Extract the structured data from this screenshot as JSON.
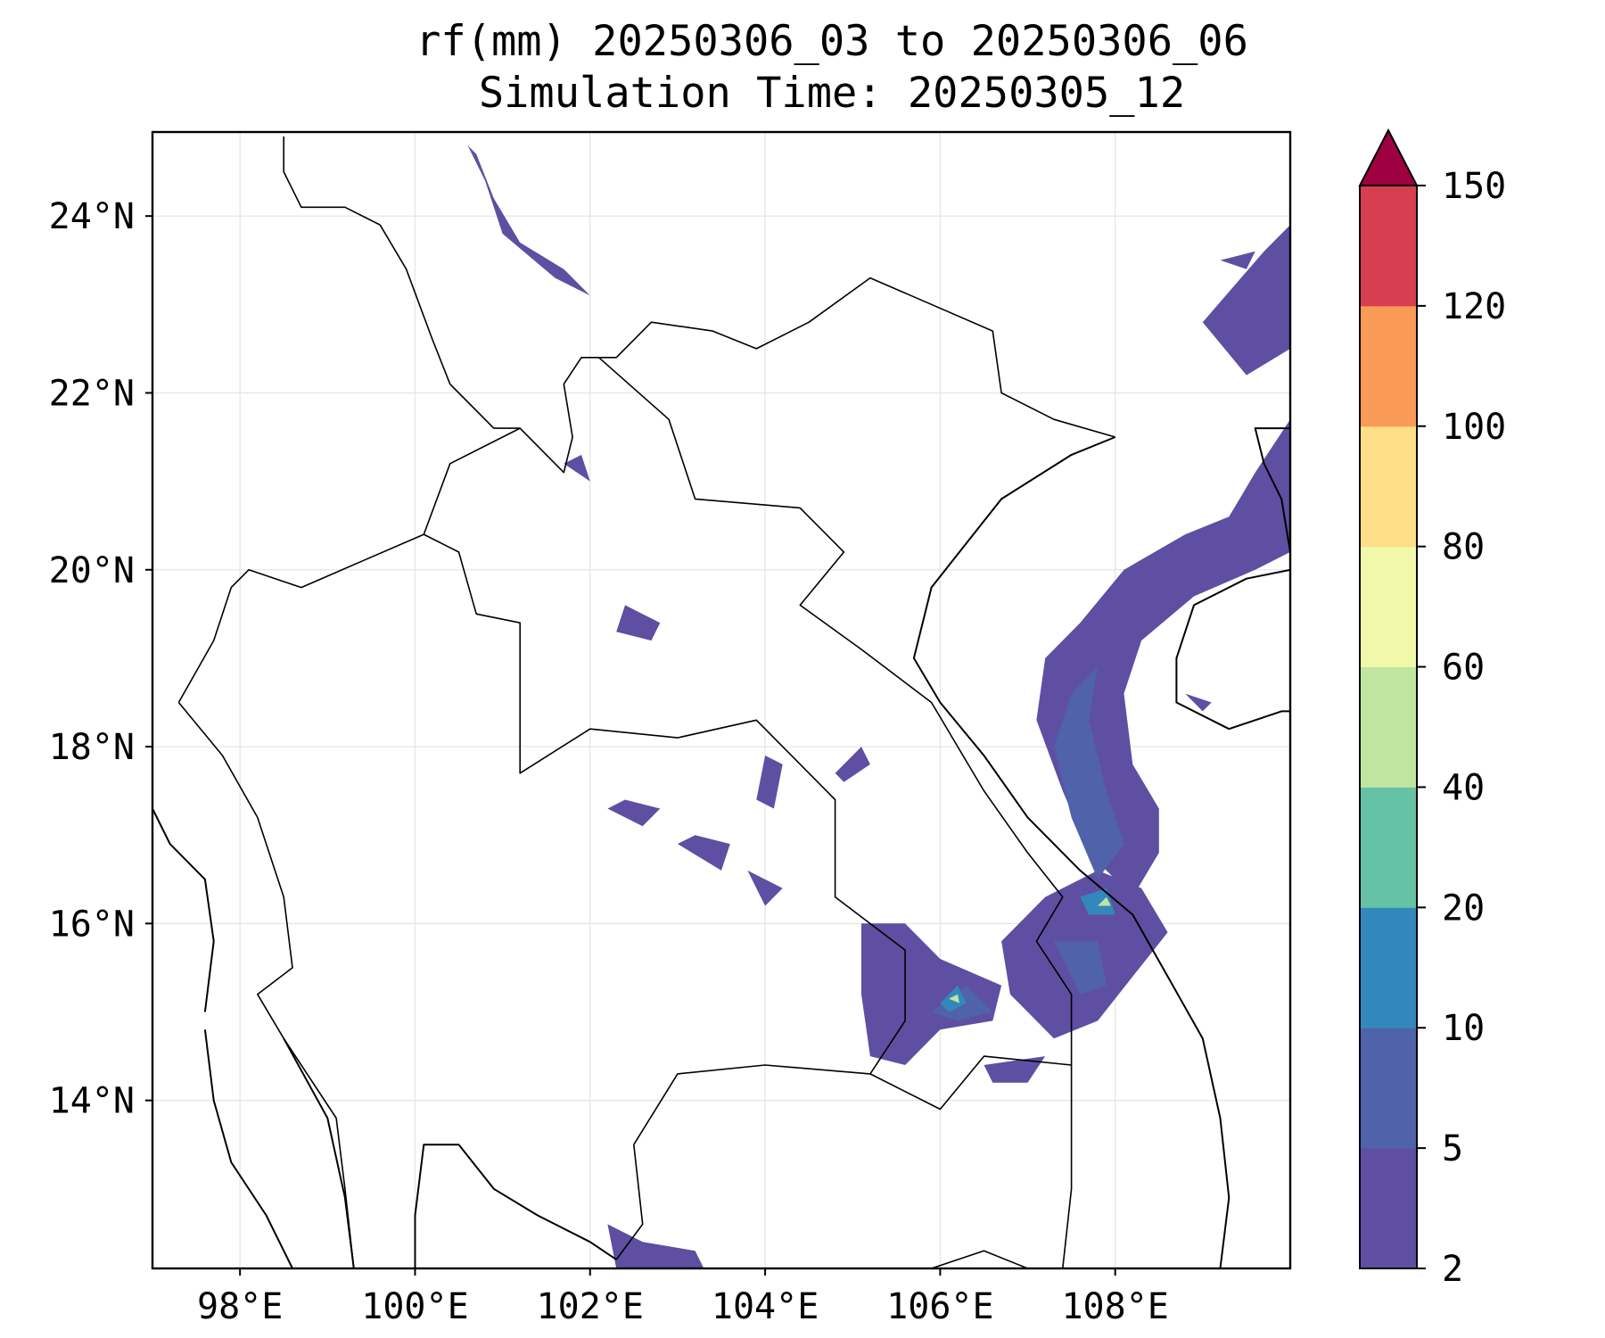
{
  "title_line1": "rf(mm) 20250306_03 to 20250306_06",
  "title_line2": "Simulation Time: 20250305_12",
  "map": {
    "lon_range": [
      97,
      110
    ],
    "lat_range": [
      12.1,
      24.95
    ],
    "x_ticks": [
      {
        "value": 98,
        "label": "98°E"
      },
      {
        "value": 100,
        "label": "100°E"
      },
      {
        "value": 102,
        "label": "102°E"
      },
      {
        "value": 104,
        "label": "104°E"
      },
      {
        "value": 106,
        "label": "106°E"
      },
      {
        "value": 108,
        "label": "108°E"
      }
    ],
    "y_ticks": [
      {
        "value": 14,
        "label": "14°N"
      },
      {
        "value": 16,
        "label": "16°N"
      },
      {
        "value": 18,
        "label": "18°N"
      },
      {
        "value": 20,
        "label": "20°N"
      },
      {
        "value": 22,
        "label": "22°N"
      },
      {
        "value": 24,
        "label": "24°N"
      }
    ],
    "grid": true
  },
  "colorbar": {
    "levels": [
      2,
      5,
      10,
      20,
      40,
      60,
      80,
      100,
      120,
      150
    ],
    "labels": [
      "2",
      "5",
      "10",
      "20",
      "40",
      "60",
      "80",
      "100",
      "120",
      "150"
    ],
    "colors": [
      "#5e4fa2",
      "#4f62aa",
      "#3288bd",
      "#66c2a5",
      "#bfe5a0",
      "#f1f8aa",
      "#fdde89",
      "#fa9a57",
      "#d63f4f"
    ],
    "extend_color": "#9e0142",
    "extend": "max"
  },
  "rain_patches": [
    {
      "name": "rain-band-gulf-of-tonkin",
      "level": 0,
      "points": [
        [
          108.2,
          16.3
        ],
        [
          107.7,
          16.8
        ],
        [
          107.4,
          17.5
        ],
        [
          107.1,
          18.3
        ],
        [
          107.2,
          19.0
        ],
        [
          107.6,
          19.4
        ],
        [
          108.1,
          20.0
        ],
        [
          108.8,
          20.4
        ],
        [
          109.3,
          20.6
        ],
        [
          109.6,
          21.1
        ],
        [
          110.0,
          21.7
        ],
        [
          110.0,
          20.2
        ],
        [
          109.6,
          20.0
        ],
        [
          108.9,
          19.7
        ],
        [
          108.3,
          19.2
        ],
        [
          108.1,
          18.6
        ],
        [
          108.2,
          17.8
        ],
        [
          108.5,
          17.3
        ],
        [
          108.5,
          16.8
        ]
      ]
    },
    {
      "name": "rain-band-central-vietnam",
      "level": 0,
      "points": [
        [
          107.2,
          16.3
        ],
        [
          106.7,
          15.8
        ],
        [
          106.8,
          15.2
        ],
        [
          107.3,
          14.7
        ],
        [
          107.8,
          14.9
        ],
        [
          108.2,
          15.4
        ],
        [
          108.6,
          15.9
        ],
        [
          108.3,
          16.4
        ],
        [
          107.8,
          16.6
        ]
      ]
    },
    {
      "name": "rain-band-guangxi",
      "level": 0,
      "points": [
        [
          109.0,
          22.8
        ],
        [
          109.7,
          23.6
        ],
        [
          110.0,
          23.9
        ],
        [
          110.0,
          22.5
        ],
        [
          109.5,
          22.2
        ]
      ]
    },
    {
      "name": "rain-band-northwest-yunnan",
      "level": 0,
      "points": [
        [
          100.6,
          24.8
        ],
        [
          100.8,
          24.4
        ],
        [
          101.0,
          23.8
        ],
        [
          101.6,
          23.3
        ],
        [
          102.0,
          23.1
        ],
        [
          101.7,
          23.4
        ],
        [
          101.2,
          23.7
        ],
        [
          100.9,
          24.2
        ],
        [
          100.7,
          24.7
        ]
      ]
    },
    {
      "name": "rain-cluster-southern-laos",
      "level": 0,
      "points": [
        [
          105.1,
          16.0
        ],
        [
          105.6,
          16.0
        ],
        [
          106.0,
          15.6
        ],
        [
          106.7,
          15.3
        ],
        [
          106.6,
          14.9
        ],
        [
          106.0,
          14.8
        ],
        [
          105.6,
          14.4
        ],
        [
          105.2,
          14.5
        ],
        [
          105.1,
          15.2
        ]
      ]
    },
    {
      "name": "rain-patch-cambodia-east",
      "level": 0,
      "points": [
        [
          106.5,
          14.4
        ],
        [
          107.2,
          14.5
        ],
        [
          107.0,
          14.2
        ],
        [
          106.6,
          14.2
        ]
      ]
    },
    {
      "name": "rain-patch-gulf-of-thailand",
      "level": 0,
      "points": [
        [
          102.2,
          12.6
        ],
        [
          102.6,
          12.4
        ],
        [
          103.2,
          12.3
        ],
        [
          103.3,
          12.1
        ],
        [
          102.3,
          12.1
        ]
      ]
    },
    {
      "name": "rain-patch-laos-1",
      "level": 0,
      "points": [
        [
          102.2,
          17.3
        ],
        [
          102.6,
          17.1
        ],
        [
          102.8,
          17.3
        ],
        [
          102.4,
          17.4
        ]
      ]
    },
    {
      "name": "rain-patch-laos-2",
      "level": 0,
      "points": [
        [
          103.0,
          16.9
        ],
        [
          103.5,
          16.6
        ],
        [
          103.6,
          16.9
        ],
        [
          103.2,
          17.0
        ]
      ]
    },
    {
      "name": "rain-patch-laos-3",
      "level": 0,
      "points": [
        [
          103.9,
          17.4
        ],
        [
          104.0,
          17.9
        ],
        [
          104.2,
          17.8
        ],
        [
          104.1,
          17.3
        ]
      ]
    },
    {
      "name": "rain-patch-laos-4",
      "level": 0,
      "points": [
        [
          104.8,
          17.7
        ],
        [
          105.1,
          18.0
        ],
        [
          105.2,
          17.8
        ],
        [
          104.9,
          17.6
        ]
      ]
    },
    {
      "name": "rain-patch-laos-5",
      "level": 0,
      "points": [
        [
          103.8,
          16.6
        ],
        [
          104.0,
          16.2
        ],
        [
          104.2,
          16.4
        ]
      ]
    },
    {
      "name": "rain-patch-laos-6",
      "level": 0,
      "points": [
        [
          102.4,
          19.6
        ],
        [
          102.8,
          19.4
        ],
        [
          102.7,
          19.2
        ],
        [
          102.3,
          19.3
        ]
      ]
    },
    {
      "name": "rain-patch-hainan",
      "level": 0,
      "points": [
        [
          108.8,
          18.6
        ],
        [
          109.0,
          18.4
        ],
        [
          109.1,
          18.5
        ]
      ]
    },
    {
      "name": "rain-patch-guangdong",
      "level": 0,
      "points": [
        [
          109.2,
          23.5
        ],
        [
          109.6,
          23.6
        ],
        [
          109.5,
          23.4
        ]
      ]
    },
    {
      "name": "rain-patch-myanmar-thailand",
      "level": 0,
      "points": [
        [
          101.7,
          21.2
        ],
        [
          102.0,
          21.0
        ],
        [
          101.9,
          21.3
        ]
      ]
    },
    {
      "name": "rain-core-gulf-of-tonkin",
      "level": 1,
      "points": [
        [
          107.8,
          16.5
        ],
        [
          107.5,
          17.2
        ],
        [
          107.3,
          18.0
        ],
        [
          107.5,
          18.6
        ],
        [
          107.8,
          18.9
        ],
        [
          107.7,
          18.3
        ],
        [
          107.9,
          17.5
        ],
        [
          108.1,
          16.9
        ]
      ]
    },
    {
      "name": "rain-core-central-vietnam",
      "level": 1,
      "points": [
        [
          107.3,
          15.8
        ],
        [
          107.6,
          15.2
        ],
        [
          107.9,
          15.3
        ],
        [
          107.8,
          15.8
        ]
      ]
    },
    {
      "name": "rain-core-southern-laos",
      "level": 1,
      "points": [
        [
          105.9,
          15.0
        ],
        [
          106.3,
          15.3
        ],
        [
          106.6,
          15.0
        ],
        [
          106.2,
          14.9
        ]
      ]
    },
    {
      "name": "rain-cell-hue",
      "level": 2,
      "points": [
        [
          107.6,
          16.3
        ],
        [
          107.9,
          16.4
        ],
        [
          108.0,
          16.1
        ],
        [
          107.7,
          16.1
        ]
      ]
    },
    {
      "name": "rain-cell-sekong",
      "level": 2,
      "points": [
        [
          106.0,
          15.1
        ],
        [
          106.2,
          15.3
        ],
        [
          106.3,
          15.1
        ],
        [
          106.1,
          15.0
        ]
      ]
    },
    {
      "name": "rain-cell-hue-inner",
      "level": 4,
      "points": [
        [
          107.8,
          16.2
        ],
        [
          107.9,
          16.3
        ],
        [
          107.95,
          16.2
        ]
      ]
    },
    {
      "name": "rain-cell-sekong-inner",
      "level": 4,
      "points": [
        [
          106.1,
          15.15
        ],
        [
          106.2,
          15.2
        ],
        [
          106.22,
          15.1
        ]
      ]
    }
  ],
  "borders": [
    {
      "name": "china-border",
      "points": [
        [
          98.5,
          24.9
        ],
        [
          98.5,
          24.5
        ],
        [
          98.7,
          24.1
        ],
        [
          99.2,
          24.1
        ],
        [
          99.6,
          23.9
        ],
        [
          99.9,
          23.4
        ],
        [
          100.2,
          22.6
        ],
        [
          100.4,
          22.1
        ],
        [
          100.9,
          21.6
        ],
        [
          101.2,
          21.6
        ],
        [
          101.7,
          21.1
        ],
        [
          101.8,
          21.5
        ],
        [
          101.7,
          22.1
        ],
        [
          101.9,
          22.4
        ],
        [
          102.3,
          22.4
        ],
        [
          102.7,
          22.8
        ],
        [
          103.4,
          22.7
        ],
        [
          103.9,
          22.5
        ],
        [
          104.5,
          22.8
        ],
        [
          105.2,
          23.3
        ],
        [
          105.9,
          23.0
        ],
        [
          106.6,
          22.7
        ],
        [
          106.7,
          22.0
        ],
        [
          107.3,
          21.7
        ],
        [
          108.0,
          21.5
        ]
      ]
    },
    {
      "name": "laos-vietnam-border",
      "points": [
        [
          102.1,
          22.4
        ],
        [
          102.9,
          21.7
        ],
        [
          103.2,
          20.8
        ],
        [
          104.4,
          20.7
        ],
        [
          104.9,
          20.2
        ],
        [
          104.4,
          19.6
        ],
        [
          105.1,
          19.1
        ],
        [
          105.9,
          18.5
        ],
        [
          106.5,
          17.5
        ],
        [
          107.0,
          16.8
        ],
        [
          107.4,
          16.3
        ],
        [
          107.1,
          15.8
        ],
        [
          107.5,
          15.2
        ],
        [
          107.5,
          14.4
        ]
      ]
    },
    {
      "name": "laos-thailand-border",
      "points": [
        [
          100.1,
          20.4
        ],
        [
          100.5,
          20.2
        ],
        [
          100.7,
          19.5
        ],
        [
          101.2,
          19.4
        ],
        [
          101.2,
          17.7
        ],
        [
          102.0,
          18.2
        ],
        [
          103.0,
          18.1
        ],
        [
          103.9,
          18.3
        ],
        [
          104.8,
          17.4
        ],
        [
          104.8,
          16.3
        ],
        [
          105.6,
          15.7
        ],
        [
          105.6,
          14.9
        ],
        [
          105.2,
          14.3
        ]
      ]
    },
    {
      "name": "myanmar-laos-border",
      "points": [
        [
          100.1,
          20.4
        ],
        [
          100.4,
          21.2
        ],
        [
          101.2,
          21.6
        ]
      ]
    },
    {
      "name": "myanmar-thailand-border",
      "points": [
        [
          97.3,
          18.5
        ],
        [
          97.8,
          17.9
        ],
        [
          98.2,
          17.2
        ],
        [
          98.5,
          16.3
        ],
        [
          98.6,
          15.5
        ],
        [
          98.2,
          15.2
        ],
        [
          98.5,
          14.7
        ],
        [
          99.1,
          13.8
        ],
        [
          99.2,
          13.0
        ],
        [
          99.3,
          12.1
        ]
      ]
    },
    {
      "name": "myanmar-thailand-north",
      "points": [
        [
          97.3,
          18.5
        ],
        [
          97.7,
          19.2
        ],
        [
          97.9,
          19.8
        ],
        [
          98.1,
          20.0
        ],
        [
          98.7,
          19.8
        ],
        [
          99.4,
          20.1
        ],
        [
          100.1,
          20.4
        ]
      ]
    },
    {
      "name": "cambodia-thailand-border",
      "points": [
        [
          102.3,
          12.2
        ],
        [
          102.6,
          12.6
        ],
        [
          102.5,
          13.5
        ],
        [
          103.0,
          14.3
        ],
        [
          104.0,
          14.4
        ],
        [
          105.2,
          14.3
        ]
      ]
    },
    {
      "name": "cambodia-laos-vietnam-border",
      "points": [
        [
          105.2,
          14.3
        ],
        [
          106.0,
          13.9
        ],
        [
          106.5,
          14.5
        ],
        [
          107.5,
          14.4
        ],
        [
          107.5,
          13.0
        ],
        [
          107.4,
          12.1
        ]
      ]
    },
    {
      "name": "vietnam-cambodia-south",
      "points": [
        [
          105.9,
          12.1
        ],
        [
          106.5,
          12.3
        ],
        [
          107.0,
          12.1
        ]
      ]
    }
  ],
  "coastlines": [
    {
      "name": "vietnam-coast",
      "points": [
        [
          108.0,
          21.5
        ],
        [
          107.5,
          21.3
        ],
        [
          106.7,
          20.8
        ],
        [
          106.3,
          20.3
        ],
        [
          105.9,
          19.8
        ],
        [
          105.7,
          19.0
        ],
        [
          106.0,
          18.5
        ],
        [
          106.5,
          17.9
        ],
        [
          107.0,
          17.2
        ],
        [
          107.6,
          16.6
        ],
        [
          108.2,
          16.1
        ],
        [
          108.6,
          15.4
        ],
        [
          109.0,
          14.7
        ],
        [
          109.2,
          13.8
        ],
        [
          109.3,
          12.9
        ],
        [
          109.2,
          12.1
        ]
      ]
    },
    {
      "name": "gulf-of-thailand-coast",
      "points": [
        [
          100.0,
          12.1
        ],
        [
          100.0,
          12.7
        ],
        [
          100.1,
          13.5
        ],
        [
          100.5,
          13.5
        ],
        [
          100.9,
          13.0
        ],
        [
          101.4,
          12.7
        ],
        [
          102.0,
          12.4
        ],
        [
          102.3,
          12.2
        ]
      ]
    },
    {
      "name": "thailand-west-coast",
      "points": [
        [
          99.3,
          12.1
        ],
        [
          99.2,
          12.9
        ],
        [
          99.0,
          13.8
        ],
        [
          98.5,
          14.7
        ]
      ]
    },
    {
      "name": "andaman-coast",
      "points": [
        [
          97.6,
          14.8
        ],
        [
          97.7,
          14.0
        ],
        [
          97.9,
          13.3
        ],
        [
          98.3,
          12.7
        ],
        [
          98.6,
          12.1
        ]
      ]
    },
    {
      "name": "hainan-coast",
      "points": [
        [
          110.0,
          20.0
        ],
        [
          109.5,
          19.9
        ],
        [
          108.9,
          19.6
        ],
        [
          108.7,
          19.0
        ],
        [
          108.7,
          18.5
        ],
        [
          109.3,
          18.2
        ],
        [
          109.9,
          18.4
        ],
        [
          110.0,
          18.4
        ]
      ]
    },
    {
      "name": "leizhou-coast",
      "points": [
        [
          110.0,
          20.2
        ],
        [
          109.9,
          20.8
        ],
        [
          109.7,
          21.2
        ],
        [
          109.6,
          21.6
        ],
        [
          110.0,
          21.6
        ]
      ]
    },
    {
      "name": "myanmar-coast-north",
      "points": [
        [
          97.0,
          17.3
        ],
        [
          97.2,
          16.9
        ],
        [
          97.6,
          16.5
        ],
        [
          97.7,
          15.8
        ],
        [
          97.6,
          15.0
        ]
      ]
    }
  ]
}
